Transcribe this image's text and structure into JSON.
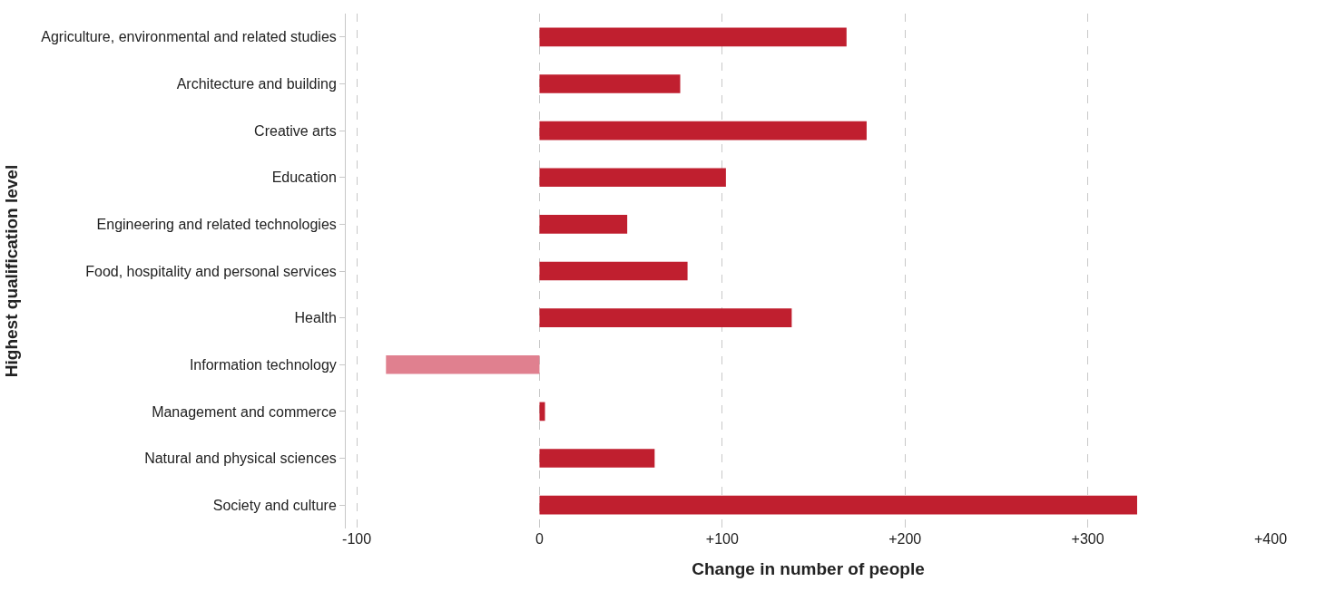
{
  "chart_data": {
    "type": "bar",
    "orientation": "horizontal",
    "categories": [
      "Agriculture, environmental and related studies",
      "Architecture and building",
      "Creative arts",
      "Education",
      "Engineering and related technologies",
      "Food, hospitality and personal services",
      "Health",
      "Information technology",
      "Management and commerce",
      "Natural and physical sciences",
      "Society and culture"
    ],
    "values": [
      168,
      77,
      179,
      102,
      48,
      81,
      138,
      -84,
      3,
      63,
      327
    ],
    "colors": [
      "#c01f2f",
      "#c01f2f",
      "#c01f2f",
      "#c01f2f",
      "#c01f2f",
      "#c01f2f",
      "#c01f2f",
      "#e0808f",
      "#c01f2f",
      "#c01f2f",
      "#c01f2f"
    ],
    "xlabel": "Change in number of people",
    "ylabel": "Highest qualification level",
    "xlim": [
      -106,
      400
    ],
    "xticks": [
      -100,
      0,
      {
        "value": 100,
        "label": "+100"
      },
      {
        "value": 200,
        "label": "+200"
      },
      {
        "value": 300,
        "label": "+300"
      },
      {
        "value": 400,
        "label": "+400"
      }
    ],
    "grid": "x",
    "line_style": "dashed"
  }
}
